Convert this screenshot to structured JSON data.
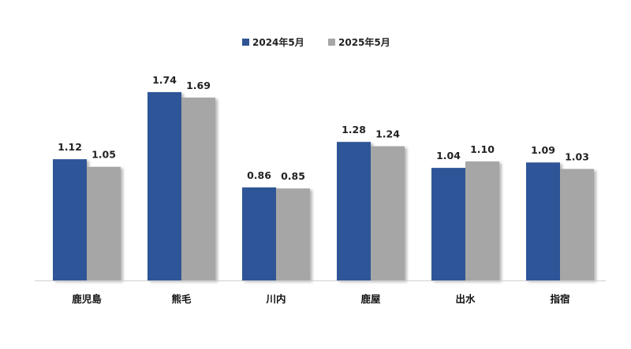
{
  "chart_data": {
    "type": "bar",
    "categories": [
      "鹿児島",
      "熊毛",
      "川内",
      "鹿屋",
      "出水",
      "指宿"
    ],
    "series": [
      {
        "name": "2024年5月",
        "color": "#2f5597",
        "values": [
          1.12,
          1.74,
          0.86,
          1.28,
          1.04,
          1.09
        ],
        "labels": [
          "1.12",
          "1.74",
          "0.86",
          "1.28",
          "1.04",
          "1.09"
        ]
      },
      {
        "name": "2025年5月",
        "color": "#a6a6a6",
        "values": [
          1.05,
          1.69,
          0.85,
          1.24,
          1.1,
          1.03
        ],
        "labels": [
          "1.05",
          "1.69",
          "0.85",
          "1.24",
          "1.10",
          "1.03"
        ]
      }
    ],
    "title": "",
    "xlabel": "",
    "ylabel": "",
    "ylim": [
      0,
      1.9
    ],
    "grid": false,
    "legend_position": "top-center"
  }
}
